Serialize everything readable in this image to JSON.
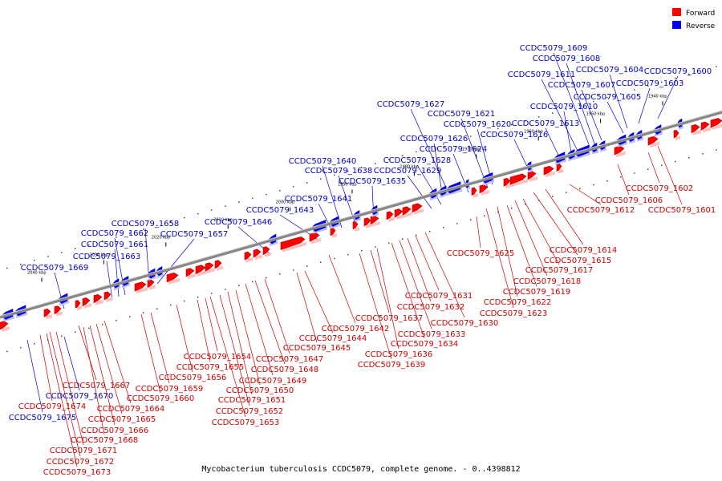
{
  "caption": "Mycobacterium tuberculosis CCDC5079, complete genome. - 0..4398812",
  "legend": {
    "forward": {
      "label": "Forward",
      "color": "#ff0000"
    },
    "reverse": {
      "label": "Reverse",
      "color": "#0000ff"
    }
  },
  "colors": {
    "forward": "#ff0000",
    "reverse": "#0000ff",
    "forward_label": "#cc0000",
    "reverse_label": "#0000cc",
    "backbone": "#888888"
  },
  "ticks": [
    "1940 kbp",
    "1950 kbp",
    "1960 kbp",
    "1970 kbp",
    "1980 kbp",
    "1990 kbp",
    "2000 kbp",
    "2010 kbp",
    "2020 kbp",
    "2030 kbp",
    "2040 kbp"
  ],
  "reverse_genes": [
    "CCDC5079_1600",
    "CCDC5079_1603",
    "CCDC5079_1604",
    "CCDC5079_1605",
    "CCDC5079_1607",
    "CCDC5079_1608",
    "CCDC5079_1609",
    "CCDC5079_1611",
    "CCDC5079_1610",
    "CCDC5079_1613",
    "CCDC5079_1616",
    "CCDC5079_1620",
    "CCDC5079_1621",
    "CCDC5079_1627",
    "CCDC5079_1626",
    "CCDC5079_1624",
    "CCDC5079_1628",
    "CCDC5079_1629",
    "CCDC5079_1635",
    "CCDC5079_1638",
    "CCDC5079_1640",
    "CCDC5079_1641",
    "CCDC5079_1643",
    "CCDC5079_1646",
    "CCDC5079_1657",
    "CCDC5079_1658",
    "CCDC5079_1662",
    "CCDC5079_1661",
    "CCDC5079_1663",
    "CCDC5079_1669",
    "CCDC5079_1670",
    "CCDC5079_1675"
  ],
  "forward_genes": [
    "CCDC5079_1602",
    "CCDC5079_1601",
    "CCDC5079_1606",
    "CCDC5079_1612",
    "CCDC5079_1614",
    "CCDC5079_1615",
    "CCDC5079_1617",
    "CCDC5079_1618",
    "CCDC5079_1619",
    "CCDC5079_1622",
    "CCDC5079_1623",
    "CCDC5079_1625",
    "CCDC5079_1630",
    "CCDC5079_1631",
    "CCDC5079_1632",
    "CCDC5079_1633",
    "CCDC5079_1634",
    "CCDC5079_1636",
    "CCDC5079_1637",
    "CCDC5079_1639",
    "CCDC5079_1642",
    "CCDC5079_1644",
    "CCDC5079_1645",
    "CCDC5079_1647",
    "CCDC5079_1648",
    "CCDC5079_1649",
    "CCDC5079_1650",
    "CCDC5079_1651",
    "CCDC5079_1652",
    "CCDC5079_1653",
    "CCDC5079_1654",
    "CCDC5079_1655",
    "CCDC5079_1656",
    "CCDC5079_1659",
    "CCDC5079_1660",
    "CCDC5079_1664",
    "CCDC5079_1665",
    "CCDC5079_1666",
    "CCDC5079_1667",
    "CCDC5079_1668",
    "CCDC5079_1671",
    "CCDC5079_1672",
    "CCDC5079_1673",
    "CCDC5079_1674"
  ]
}
